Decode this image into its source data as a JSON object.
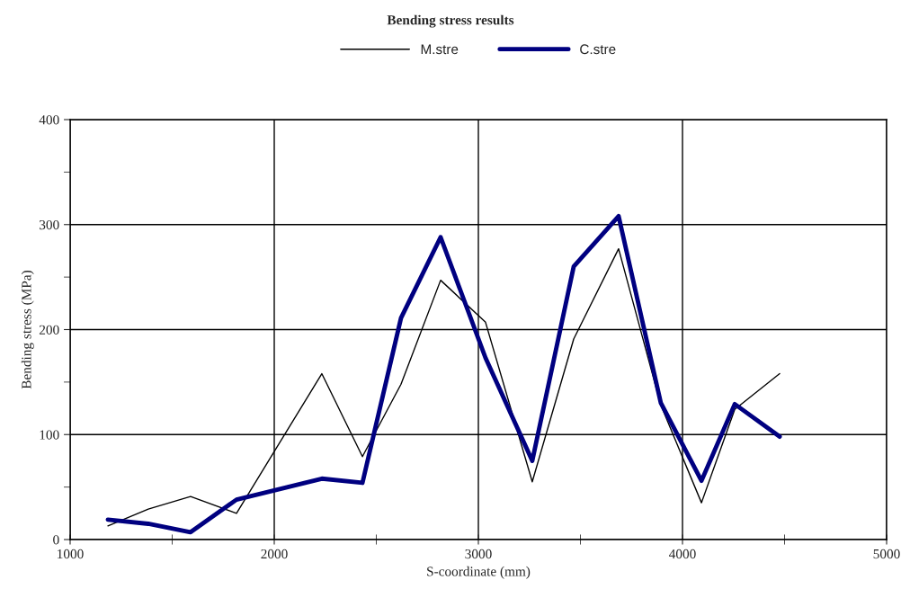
{
  "chart_data": {
    "type": "line",
    "title": "Bending stress results",
    "xlabel": "S-coordinate (mm)",
    "ylabel": "Bending stress (MPa)",
    "x": [
      1185,
      1383,
      1590,
      1815,
      2233,
      2432,
      2621,
      2815,
      3035,
      3264,
      3467,
      3687,
      3894,
      4093,
      4256,
      4476
    ],
    "series": [
      {
        "name": "M.stre",
        "color": "#000000",
        "values": [
          13,
          29,
          41,
          25,
          158,
          79,
          148,
          247,
          207,
          55,
          191,
          277,
          128,
          35,
          124,
          158
        ]
      },
      {
        "name": "C.stre",
        "color": "#000080",
        "values": [
          19,
          15,
          7,
          38,
          58,
          54,
          211,
          288,
          173,
          75,
          260,
          308,
          130,
          56,
          129,
          98
        ]
      }
    ],
    "xlim": [
      1000,
      5000
    ],
    "xticks": [
      1000,
      2000,
      3000,
      4000,
      5000
    ],
    "ylim": [
      0,
      400
    ],
    "yticks": [
      0,
      100,
      200,
      300,
      400
    ],
    "grid": true,
    "legend": "top",
    "marker": "none",
    "line_style": "solid"
  }
}
